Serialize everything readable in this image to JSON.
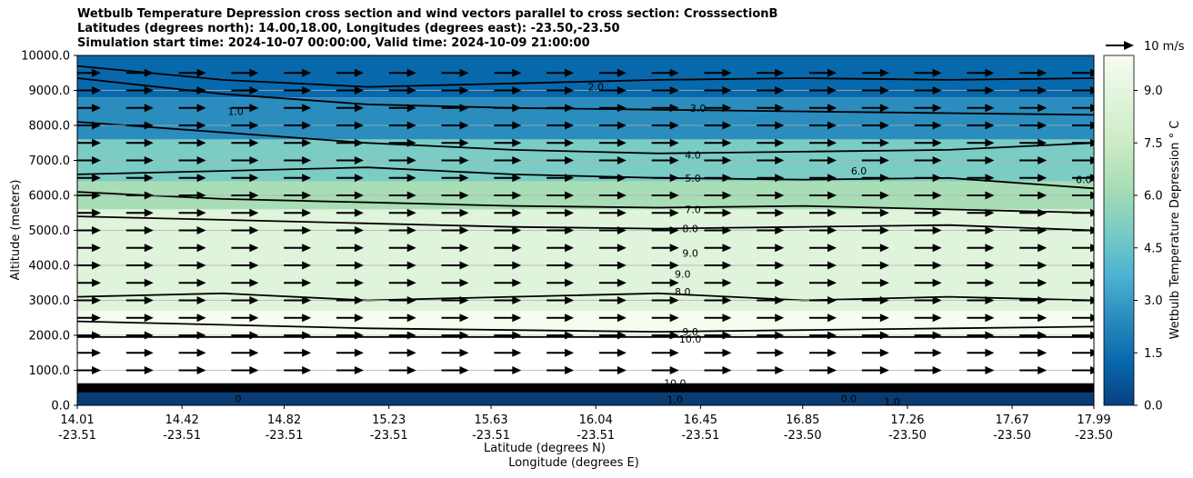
{
  "chart_data": {
    "type": "contour",
    "title": [
      "Wetbulb Temperature Depression cross section and wind vectors parallel to cross section: CrosssectionB",
      "Latitudes (degrees north): 14.00,18.00, Longitudes (degrees east): -23.50,-23.50",
      "Simulation start time: 2024-10-07 00:00:00, Valid time: 2024-10-09 21:00:00"
    ],
    "ylabel": "Altitude (meters)",
    "xlabel_lat": "Latitude (degrees N)",
    "xlabel_lon": "Longitude (degrees E)",
    "ylim": [
      0,
      10000
    ],
    "xlim": [
      14.01,
      17.99
    ],
    "y_ticks": [
      "0.0",
      "1000.0",
      "2000.0",
      "3000.0",
      "4000.0",
      "5000.0",
      "6000.0",
      "7000.0",
      "8000.0",
      "9000.0",
      "10000.0"
    ],
    "x_ticks": [
      {
        "lat": "14.01",
        "lon": "-23.51"
      },
      {
        "lat": "14.42",
        "lon": "-23.51"
      },
      {
        "lat": "14.82",
        "lon": "-23.51"
      },
      {
        "lat": "15.23",
        "lon": "-23.51"
      },
      {
        "lat": "15.63",
        "lon": "-23.51"
      },
      {
        "lat": "16.04",
        "lon": "-23.51"
      },
      {
        "lat": "16.45",
        "lon": "-23.51"
      },
      {
        "lat": "16.85",
        "lon": "-23.50"
      },
      {
        "lat": "17.26",
        "lon": "-23.50"
      },
      {
        "lat": "17.67",
        "lon": "-23.50"
      },
      {
        "lat": "17.99",
        "lon": "-23.50"
      }
    ],
    "colorbar": {
      "label": "Wetbulb Temperature Depression ° C",
      "range": [
        0,
        10
      ],
      "ticks": [
        "0.0",
        "1.5",
        "3.0",
        "4.5",
        "6.0",
        "7.5",
        "9.0"
      ],
      "colors": [
        "#084081",
        "#0868ac",
        "#2b8cbe",
        "#4eb3d3",
        "#7bccc4",
        "#a8ddb5",
        "#ccebc5",
        "#e0f3db",
        "#f7fcf0"
      ]
    },
    "vector_key": "10 m/s",
    "vector_rows_m": [
      9500,
      9000,
      8500,
      8000,
      7500,
      7000,
      6500,
      6000,
      5500,
      5000,
      4500,
      4000,
      3500,
      3000,
      2500,
      2000,
      1500,
      1000
    ],
    "layers": [
      {
        "top": 10000,
        "bottom": 8800,
        "value": 1.8
      },
      {
        "top": 8800,
        "bottom": 7600,
        "value": 3.2
      },
      {
        "top": 7600,
        "bottom": 6400,
        "value": 4.8
      },
      {
        "top": 6400,
        "bottom": 5600,
        "value": 6.5
      },
      {
        "top": 5600,
        "bottom": 4400,
        "value": 7.8
      },
      {
        "top": 4400,
        "bottom": 2700,
        "value": 8.6
      },
      {
        "top": 2700,
        "bottom": 2000,
        "value": 9.5
      }
    ],
    "contour_labels": [
      {
        "text": "2.0",
        "lat": 16.04,
        "alt": 9100
      },
      {
        "text": "1.0",
        "lat": 14.63,
        "alt": 8400
      },
      {
        "text": "3.0",
        "lat": 16.44,
        "alt": 8500
      },
      {
        "text": "4.0",
        "lat": 16.42,
        "alt": 7150
      },
      {
        "text": "6.0",
        "lat": 17.07,
        "alt": 6700
      },
      {
        "text": "5.0",
        "lat": 16.42,
        "alt": 6500
      },
      {
        "text": "6.0",
        "lat": 17.95,
        "alt": 6450
      },
      {
        "text": "7.0",
        "lat": 16.42,
        "alt": 5600
      },
      {
        "text": "8.0",
        "lat": 16.41,
        "alt": 5050
      },
      {
        "text": "9.0",
        "lat": 16.41,
        "alt": 4350
      },
      {
        "text": "9.0",
        "lat": 16.38,
        "alt": 3750
      },
      {
        "text": "8.0",
        "lat": 16.38,
        "alt": 3250
      },
      {
        "text": "9.0",
        "lat": 16.41,
        "alt": 2100
      },
      {
        "text": "10.0",
        "lat": 16.41,
        "alt": 1900
      },
      {
        "text": "10.0",
        "lat": 16.35,
        "alt": 630
      },
      {
        "text": "1.0",
        "lat": 16.35,
        "alt": 170
      },
      {
        "text": "0.0",
        "lat": 17.03,
        "alt": 200
      },
      {
        "text": "1.0",
        "lat": 17.2,
        "alt": 100
      },
      {
        "text": "0",
        "lat": 14.64,
        "alt": 200
      }
    ]
  }
}
